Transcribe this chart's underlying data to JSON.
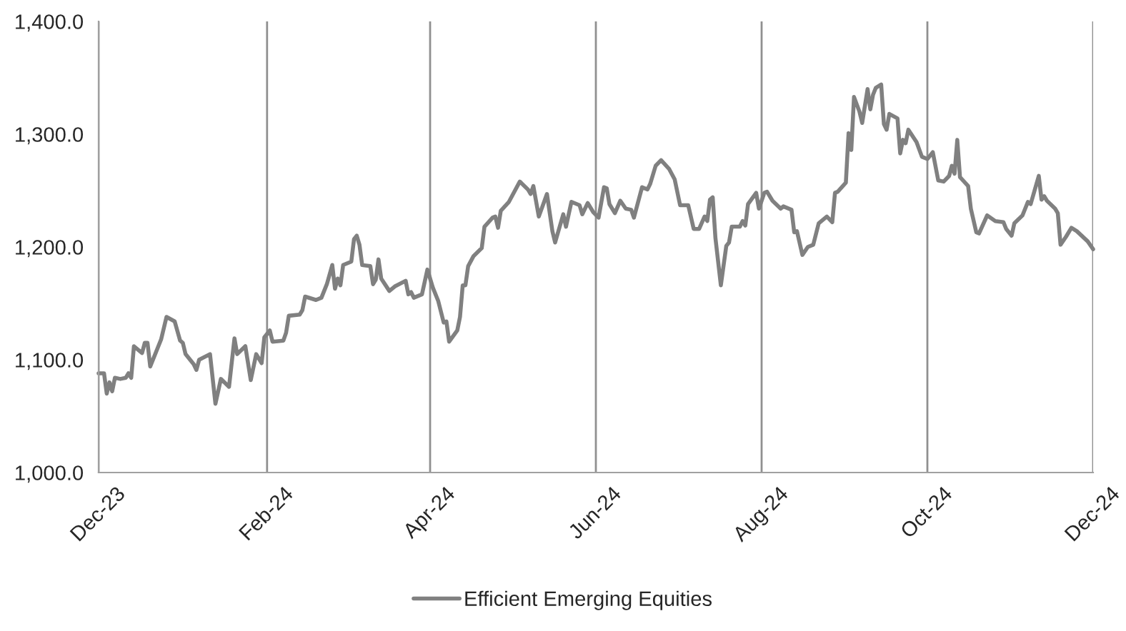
{
  "chart_data": {
    "type": "line",
    "x": [
      "2023-12-01",
      "2023-12-03",
      "2023-12-04",
      "2023-12-05",
      "2023-12-06",
      "2023-12-07",
      "2023-12-09",
      "2023-12-11",
      "2023-12-12",
      "2023-12-13",
      "2023-12-14",
      "2023-12-17",
      "2023-12-18",
      "2023-12-19",
      "2023-12-20",
      "2023-12-24",
      "2023-12-26",
      "2023-12-29",
      "2023-12-31",
      "2024-01-01",
      "2024-01-02",
      "2024-01-05",
      "2024-01-06",
      "2024-01-07",
      "2024-01-11",
      "2024-01-13",
      "2024-01-15",
      "2024-01-18",
      "2024-01-20",
      "2024-01-21",
      "2024-01-24",
      "2024-01-26",
      "2024-01-28",
      "2024-01-30",
      "2024-01-31",
      "2024-02-02",
      "2024-02-03",
      "2024-02-07",
      "2024-02-08",
      "2024-02-09",
      "2024-02-13",
      "2024-02-14",
      "2024-02-15",
      "2024-02-19",
      "2024-02-21",
      "2024-02-23",
      "2024-02-25",
      "2024-02-26",
      "2024-02-27",
      "2024-02-28",
      "2024-02-29",
      "2024-03-03",
      "2024-03-04",
      "2024-03-05",
      "2024-03-06",
      "2024-03-07",
      "2024-03-10",
      "2024-03-11",
      "2024-03-12",
      "2024-03-13",
      "2024-03-14",
      "2024-03-17",
      "2024-03-19",
      "2024-03-23",
      "2024-03-24",
      "2024-03-25",
      "2024-03-26",
      "2024-03-29",
      "2024-03-31",
      "2024-04-02",
      "2024-04-04",
      "2024-04-06",
      "2024-04-07",
      "2024-04-08",
      "2024-04-11",
      "2024-04-12",
      "2024-04-13",
      "2024-04-14",
      "2024-04-15",
      "2024-04-17",
      "2024-04-20",
      "2024-04-21",
      "2024-04-24",
      "2024-04-25",
      "2024-04-26",
      "2024-04-27",
      "2024-04-30",
      "2024-05-04",
      "2024-05-07",
      "2024-05-08",
      "2024-05-09",
      "2024-05-11",
      "2024-05-14",
      "2024-05-16",
      "2024-05-17",
      "2024-05-20",
      "2024-05-21",
      "2024-05-23",
      "2024-05-26",
      "2024-05-27",
      "2024-05-29",
      "2024-05-31",
      "2024-06-02",
      "2024-06-04",
      "2024-06-05",
      "2024-06-06",
      "2024-06-08",
      "2024-06-10",
      "2024-06-12",
      "2024-06-14",
      "2024-06-15",
      "2024-06-18",
      "2024-06-20",
      "2024-06-21",
      "2024-06-23",
      "2024-06-25",
      "2024-06-28",
      "2024-06-30",
      "2024-07-02",
      "2024-07-05",
      "2024-07-07",
      "2024-07-09",
      "2024-07-11",
      "2024-07-12",
      "2024-07-13",
      "2024-07-14",
      "2024-07-15",
      "2024-07-17",
      "2024-07-19",
      "2024-07-20",
      "2024-07-21",
      "2024-07-24",
      "2024-07-25",
      "2024-07-26",
      "2024-07-27",
      "2024-07-30",
      "2024-07-31",
      "2024-08-02",
      "2024-08-03",
      "2024-08-05",
      "2024-08-08",
      "2024-08-09",
      "2024-08-12",
      "2024-08-13",
      "2024-08-14",
      "2024-08-16",
      "2024-08-18",
      "2024-08-20",
      "2024-08-22",
      "2024-08-25",
      "2024-08-27",
      "2024-08-28",
      "2024-08-29",
      "2024-09-01",
      "2024-09-02",
      "2024-09-03",
      "2024-09-04",
      "2024-09-06",
      "2024-09-07",
      "2024-09-09",
      "2024-09-10",
      "2024-09-11",
      "2024-09-12",
      "2024-09-14",
      "2024-09-15",
      "2024-09-16",
      "2024-09-17",
      "2024-09-20",
      "2024-09-21",
      "2024-09-22",
      "2024-09-23",
      "2024-09-24",
      "2024-09-27",
      "2024-09-29",
      "2024-10-01",
      "2024-10-03",
      "2024-10-05",
      "2024-10-07",
      "2024-10-09",
      "2024-10-10",
      "2024-10-11",
      "2024-10-12",
      "2024-10-13",
      "2024-10-16",
      "2024-10-17",
      "2024-10-19",
      "2024-10-20",
      "2024-10-23",
      "2024-10-26",
      "2024-10-29",
      "2024-10-30",
      "2024-11-01",
      "2024-11-02",
      "2024-11-05",
      "2024-11-07",
      "2024-11-08",
      "2024-11-11",
      "2024-11-12",
      "2024-11-13",
      "2024-11-14",
      "2024-11-17",
      "2024-11-18",
      "2024-11-19",
      "2024-11-21",
      "2024-11-23",
      "2024-11-25",
      "2024-11-29",
      "2024-12-01"
    ],
    "series": [
      {
        "name": "Efficient Emerging Equities",
        "color": "#808080",
        "values": [
          1088,
          1088,
          1070,
          1080,
          1072,
          1084,
          1083,
          1084,
          1088,
          1084,
          1112,
          1106,
          1115,
          1115,
          1094,
          1118,
          1138,
          1134,
          1117,
          1115,
          1105,
          1096,
          1091,
          1100,
          1105,
          1061,
          1083,
          1076,
          1119,
          1105,
          1112,
          1082,
          1105,
          1097,
          1120,
          1126,
          1116,
          1117,
          1124,
          1139,
          1140,
          1144,
          1156,
          1153,
          1155,
          1167,
          1184,
          1163,
          1172,
          1166,
          1184,
          1187,
          1207,
          1210,
          1202,
          1184,
          1183,
          1167,
          1171,
          1189,
          1172,
          1161,
          1165,
          1170,
          1158,
          1160,
          1155,
          1158,
          1180,
          1164,
          1152,
          1133,
          1134,
          1116,
          1126,
          1138,
          1166,
          1166,
          1183,
          1192,
          1199,
          1218,
          1226,
          1227,
          1217,
          1232,
          1240,
          1258,
          1251,
          1247,
          1254,
          1227,
          1247,
          1214,
          1204,
          1229,
          1218,
          1240,
          1237,
          1229,
          1239,
          1231,
          1226,
          1253,
          1252,
          1238,
          1230,
          1241,
          1234,
          1233,
          1226,
          1253,
          1251,
          1256,
          1272,
          1277,
          1269,
          1260,
          1237,
          1237,
          1216,
          1216,
          1227,
          1223,
          1242,
          1244,
          1208,
          1166,
          1201,
          1204,
          1218,
          1218,
          1223,
          1219,
          1238,
          1248,
          1234,
          1248,
          1249,
          1241,
          1234,
          1236,
          1233,
          1213,
          1214,
          1193,
          1200,
          1202,
          1221,
          1227,
          1222,
          1248,
          1249,
          1257,
          1301,
          1286,
          1333,
          1320,
          1310,
          1340,
          1322,
          1335,
          1341,
          1344,
          1309,
          1304,
          1318,
          1314,
          1283,
          1295,
          1292,
          1304,
          1293,
          1280,
          1278,
          1284,
          1259,
          1258,
          1263,
          1272,
          1265,
          1295,
          1262,
          1254,
          1234,
          1213,
          1212,
          1228,
          1223,
          1222,
          1216,
          1210,
          1221,
          1228,
          1240,
          1238,
          1263,
          1242,
          1245,
          1241,
          1234,
          1230,
          1202,
          1209,
          1217,
          1214,
          1205,
          1198
        ]
      }
    ],
    "xlim": [
      "2023-12-01",
      "2024-12-01"
    ],
    "xticks": [
      {
        "value": "2023-12-01",
        "label": "Dec-23"
      },
      {
        "value": "2024-02-01",
        "label": "Feb-24"
      },
      {
        "value": "2024-04-01",
        "label": "Apr-24"
      },
      {
        "value": "2024-06-01",
        "label": "Jun-24"
      },
      {
        "value": "2024-08-01",
        "label": "Aug-24"
      },
      {
        "value": "2024-10-01",
        "label": "Oct-24"
      },
      {
        "value": "2024-12-01",
        "label": "Dec-24"
      }
    ],
    "ylim": [
      1000,
      1400
    ],
    "yticks": [
      {
        "value": 1000,
        "label": "1,000.0"
      },
      {
        "value": 1100,
        "label": "1,100.0"
      },
      {
        "value": 1200,
        "label": "1,200.0"
      },
      {
        "value": 1300,
        "label": "1,300.0"
      },
      {
        "value": 1400,
        "label": "1,400.0"
      }
    ],
    "grid": "x",
    "legend": "bottom",
    "marker": "none",
    "line_style": "solid"
  }
}
